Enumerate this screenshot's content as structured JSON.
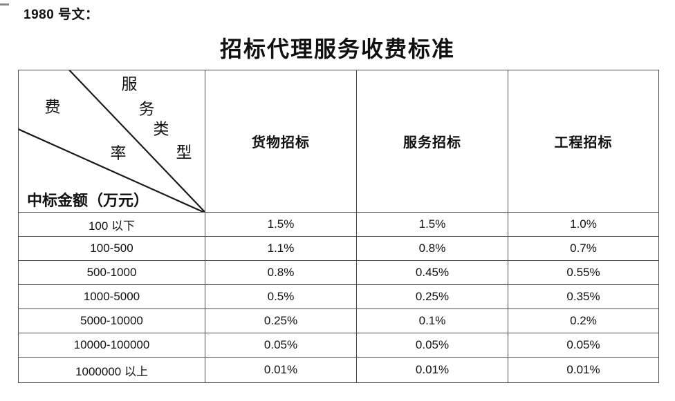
{
  "page": {
    "doc_label": "1980 号文：",
    "title": "招标代理服务收费标准"
  },
  "table": {
    "corner": {
      "service_type_chars": [
        "服",
        "务",
        "类",
        "型"
      ],
      "fee_rate_chars": [
        "费",
        "率"
      ],
      "amount_label": "中标金额（万元）"
    },
    "columns": [
      "货物招标",
      "服务招标",
      "工程招标"
    ],
    "rows": [
      {
        "range": "100 以下",
        "values": [
          "1.5%",
          "1.5%",
          "1.0%"
        ]
      },
      {
        "range": "100-500",
        "values": [
          "1.1%",
          "0.8%",
          "0.7%"
        ]
      },
      {
        "range": "500-1000",
        "values": [
          "0.8%",
          "0.45%",
          "0.55%"
        ]
      },
      {
        "range": "1000-5000",
        "values": [
          "0.5%",
          "0.25%",
          "0.35%"
        ]
      },
      {
        "range": "5000-10000",
        "values": [
          "0.25%",
          "0.1%",
          "0.2%"
        ]
      },
      {
        "range": "10000-100000",
        "values": [
          "0.05%",
          "0.05%",
          "0.05%"
        ]
      },
      {
        "range": "1000000 以上",
        "values": [
          "0.01%",
          "0.01%",
          "0.01%"
        ]
      }
    ]
  },
  "colors": {
    "background": "#ffffff",
    "text": "#111111",
    "table_border": "#4a4a4a",
    "diagonal_line": "#1a1a1a"
  }
}
